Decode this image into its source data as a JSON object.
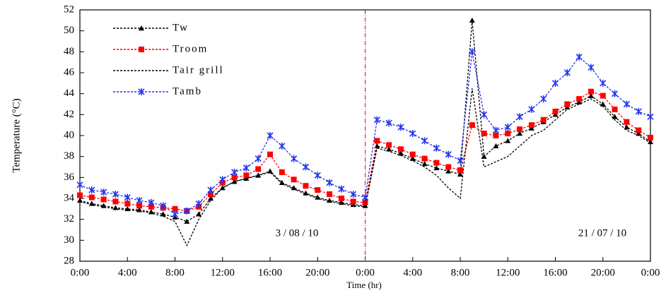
{
  "chart_data": {
    "type": "line",
    "x_label": "Time (hr)",
    "y_label": "Temperature (°C)",
    "annotations": [
      "3 / 08 / 10",
      "21 / 07 / 10"
    ],
    "x": [
      0,
      1,
      2,
      3,
      4,
      5,
      6,
      7,
      8,
      9,
      10,
      11,
      12,
      13,
      14,
      15,
      16,
      17,
      18,
      19,
      20,
      21,
      22,
      23,
      24,
      25,
      26,
      27,
      28,
      29,
      30,
      31,
      32,
      33,
      34,
      35,
      36,
      37,
      38,
      39,
      40,
      41,
      42,
      43,
      44,
      45,
      46,
      47,
      48
    ],
    "xlim": [
      0,
      48
    ],
    "xticks": [
      {
        "value": 0,
        "label": "0:00"
      },
      {
        "value": 4,
        "label": "4:00"
      },
      {
        "value": 8,
        "label": "8:00"
      },
      {
        "value": 12,
        "label": "12:00"
      },
      {
        "value": 16,
        "label": "16:00"
      },
      {
        "value": 20,
        "label": "20:00"
      },
      {
        "value": 24,
        "label": "0:00"
      },
      {
        "value": 28,
        "label": "4:00"
      },
      {
        "value": 32,
        "label": "8:00"
      },
      {
        "value": 36,
        "label": "12:00"
      },
      {
        "value": 40,
        "label": "16:00"
      },
      {
        "value": 44,
        "label": "20:00"
      },
      {
        "value": 48,
        "label": "0:00"
      }
    ],
    "ylim": [
      28,
      52
    ],
    "yticks": [
      28,
      30,
      32,
      34,
      36,
      38,
      40,
      42,
      44,
      46,
      48,
      50,
      52
    ],
    "series": [
      {
        "name": "Tw",
        "color": "#000000",
        "marker": "triangle",
        "values": [
          33.8,
          33.5,
          33.3,
          33.1,
          33.0,
          32.9,
          32.7,
          32.5,
          32.2,
          31.8,
          32.5,
          34,
          35,
          35.6,
          35.9,
          36.2,
          36.6,
          35.5,
          35,
          34.5,
          34.1,
          33.8,
          33.6,
          33.4,
          33.3,
          39,
          38.7,
          38.3,
          37.8,
          37.3,
          36.9,
          36.6,
          36.3,
          51,
          38,
          39,
          39.5,
          40.2,
          40.7,
          41.3,
          42,
          42.7,
          43.2,
          43.8,
          43,
          41.8,
          40.8,
          40.2,
          39.4
        ]
      },
      {
        "name": "Troom",
        "color": "#ff0000",
        "marker": "square",
        "values": [
          34.3,
          34.1,
          33.9,
          33.7,
          33.5,
          33.3,
          33.2,
          33.1,
          33.0,
          32.8,
          33.2,
          34.4,
          35.5,
          36,
          36.2,
          36.8,
          38.2,
          36.5,
          35.8,
          35.2,
          34.8,
          34.4,
          34.0,
          33.7,
          33.6,
          39.5,
          39.1,
          38.7,
          38.2,
          37.8,
          37.4,
          37.0,
          36.7,
          41,
          40.2,
          40,
          40.2,
          40.6,
          41,
          41.5,
          42.3,
          43,
          43.5,
          44.2,
          43.8,
          42.5,
          41.3,
          40.5,
          39.8
        ]
      },
      {
        "name": "Tair grill",
        "color": "#000000",
        "marker": "none",
        "values": [
          33.7,
          33.4,
          33.2,
          33,
          32.9,
          32.8,
          32.6,
          32.3,
          31.8,
          29.5,
          32,
          33.8,
          35,
          35.6,
          35.9,
          36.2,
          36.5,
          35.4,
          34.9,
          34.4,
          34,
          33.7,
          33.5,
          33.3,
          33.2,
          38.8,
          38.5,
          38.1,
          37.6,
          37,
          36.2,
          35,
          34,
          44.5,
          37,
          37.5,
          38,
          39,
          40,
          40.5,
          41.5,
          42.5,
          43,
          43.5,
          42.8,
          41.5,
          40.5,
          40,
          39.3
        ]
      },
      {
        "name": "Tamb",
        "color": "#2233ee",
        "marker": "star",
        "values": [
          35.3,
          34.8,
          34.6,
          34.4,
          34.1,
          33.8,
          33.6,
          33.3,
          32.5,
          32.8,
          33.5,
          34.8,
          35.8,
          36.5,
          36.9,
          37.8,
          40,
          39,
          37.8,
          37,
          36.2,
          35.5,
          34.9,
          34.4,
          34.1,
          41.5,
          41.2,
          40.8,
          40.2,
          39.5,
          38.8,
          38.2,
          37.6,
          48,
          42,
          40.5,
          40.8,
          41.8,
          42.5,
          43.5,
          45,
          46,
          47.5,
          46.5,
          45,
          44,
          43,
          42.3,
          41.8
        ]
      }
    ]
  }
}
